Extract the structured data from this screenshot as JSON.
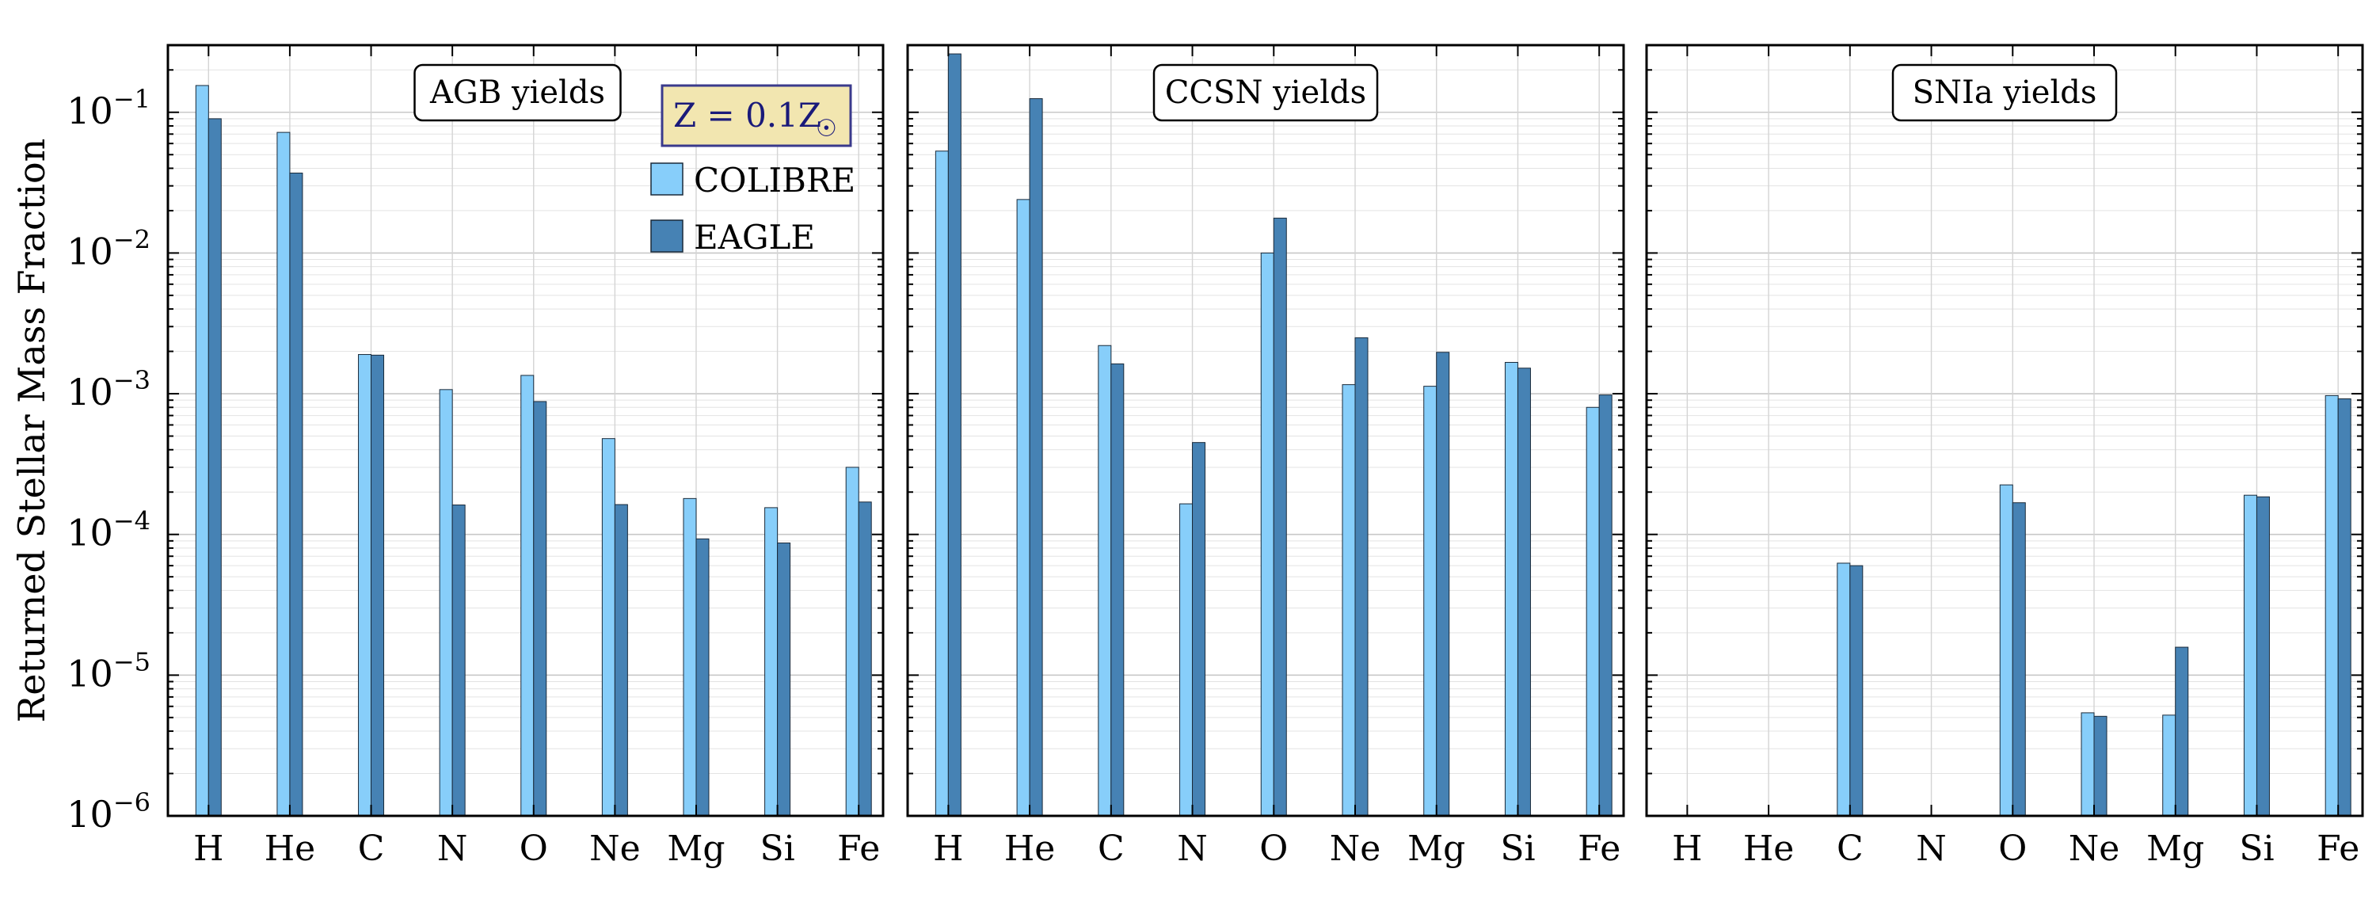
{
  "chart_data": {
    "type": "bar",
    "ylabel": "Returned Stellar Mass Fraction",
    "yscale": "log",
    "ylim": [
      1e-06,
      0.3
    ],
    "categories": [
      "H",
      "He",
      "C",
      "N",
      "O",
      "Ne",
      "Mg",
      "Si",
      "Fe"
    ],
    "yticks": [
      {
        "base": "10",
        "exp": "−6"
      },
      {
        "base": "10",
        "exp": "−5"
      },
      {
        "base": "10",
        "exp": "−4"
      },
      {
        "base": "10",
        "exp": "−3"
      },
      {
        "base": "10",
        "exp": "−2"
      },
      {
        "base": "10",
        "exp": "−1"
      }
    ],
    "colors": {
      "COLIBRE": "#87cefa",
      "EAGLE": "#4682b4",
      "edge": "#1a2a3a",
      "metal_box_bg": "#f2e6b0",
      "metal_box_border": "#3a3a8c",
      "metal_box_text": "#1a1a7a"
    },
    "legend": {
      "metallicity_label": "Z = 0.1Z",
      "metallicity_symbol": "☉",
      "placement": "top-right",
      "entries": [
        "COLIBRE",
        "EAGLE"
      ]
    },
    "panels": [
      {
        "title": "AGB yields",
        "series": [
          {
            "name": "COLIBRE",
            "values": [
              0.155,
              0.072,
              0.0019,
              0.00107,
              0.00135,
              0.00048,
              0.00018,
              0.000155,
              0.0003
            ]
          },
          {
            "name": "EAGLE",
            "values": [
              0.09,
              0.037,
              0.00188,
              0.000162,
              0.00088,
              0.000163,
              9.3e-05,
              8.7e-05,
              0.00017
            ]
          }
        ]
      },
      {
        "title": "CCSN yields",
        "series": [
          {
            "name": "COLIBRE",
            "values": [
              0.053,
              0.024,
              0.0022,
              0.000165,
              0.01,
              0.00116,
              0.00113,
              0.00167,
              0.0008
            ]
          },
          {
            "name": "EAGLE",
            "values": [
              0.26,
              0.125,
              0.00163,
              0.00045,
              0.0177,
              0.0025,
              0.00197,
              0.00152,
              0.00098
            ]
          }
        ]
      },
      {
        "title": "SNIa yields",
        "series": [
          {
            "name": "COLIBRE",
            "values": [
              null,
              null,
              6.25e-05,
              null,
              0.000225,
              5.4e-06,
              5.2e-06,
              0.00019,
              0.00097
            ]
          },
          {
            "name": "EAGLE",
            "values": [
              null,
              null,
              6e-05,
              null,
              0.000168,
              5.1e-06,
              1.58e-05,
              0.000185,
              0.00092
            ]
          }
        ]
      }
    ]
  }
}
